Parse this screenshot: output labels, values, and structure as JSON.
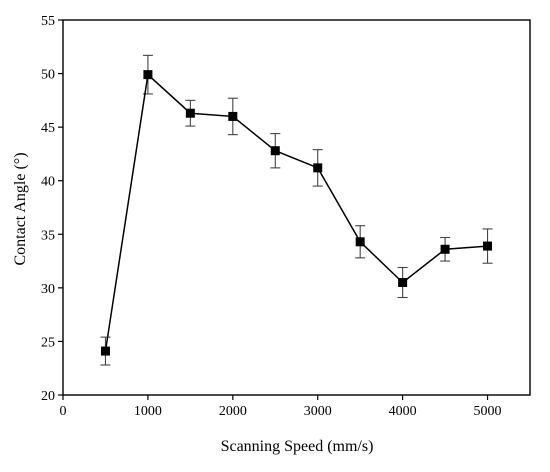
{
  "chart_data": {
    "type": "line",
    "title": "",
    "xlabel": "Scanning Speed (mm/s)",
    "ylabel": "Contact Angle (°)",
    "xlim": [
      0,
      5500
    ],
    "ylim": [
      20,
      55
    ],
    "xticks": [
      0,
      1000,
      2000,
      3000,
      4000,
      5000
    ],
    "yticks": [
      20,
      25,
      30,
      35,
      40,
      45,
      50,
      55
    ],
    "grid": false,
    "legend": "none",
    "series": [
      {
        "x": [
          500,
          1000,
          1500,
          2000,
          2500,
          3000,
          3500,
          4000,
          4500,
          5000
        ],
        "y": [
          24.1,
          49.9,
          46.3,
          46.0,
          42.8,
          41.2,
          34.3,
          30.5,
          33.6,
          33.9
        ],
        "error": [
          1.3,
          1.8,
          1.2,
          1.7,
          1.6,
          1.7,
          1.5,
          1.4,
          1.1,
          1.6
        ],
        "marker": "square",
        "color": "#000000"
      }
    ]
  }
}
